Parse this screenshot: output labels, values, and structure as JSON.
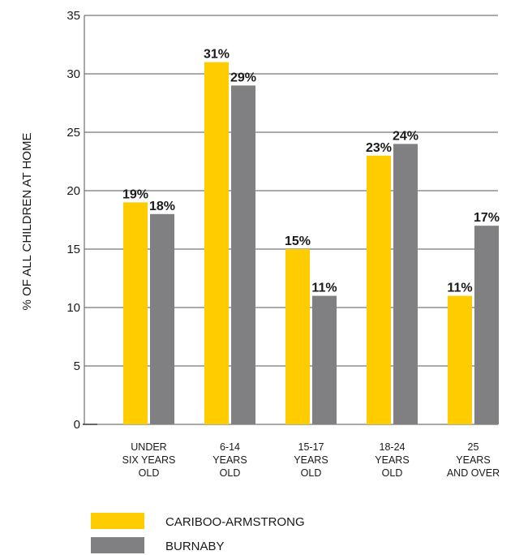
{
  "chart_data": {
    "type": "bar",
    "ylabel": "% OF ALL CHILDREN AT HOME",
    "ylim": [
      0,
      35
    ],
    "yticks": [
      0,
      5,
      10,
      15,
      20,
      25,
      30,
      35
    ],
    "grid": true,
    "legend_position": "bottom-left",
    "categories": [
      [
        "UNDER",
        "SIX YEARS",
        "OLD"
      ],
      [
        "6-14",
        "YEARS",
        "OLD"
      ],
      [
        "15-17",
        "YEARS",
        "OLD"
      ],
      [
        "18-24",
        "YEARS",
        "OLD"
      ],
      [
        "25",
        "YEARS",
        "AND OVER"
      ]
    ],
    "series": [
      {
        "name": "CARIBOO-ARMSTRONG",
        "color": "#ffcc00",
        "values": [
          19,
          31,
          15,
          23,
          11
        ],
        "labels": [
          "19%",
          "31%",
          "15%",
          "23%",
          "11%"
        ]
      },
      {
        "name": "BURNABY",
        "color": "#808083",
        "values": [
          18,
          29,
          11,
          24,
          17
        ],
        "labels": [
          "18%",
          "29%",
          "11%",
          "24%",
          "17%"
        ]
      }
    ]
  }
}
